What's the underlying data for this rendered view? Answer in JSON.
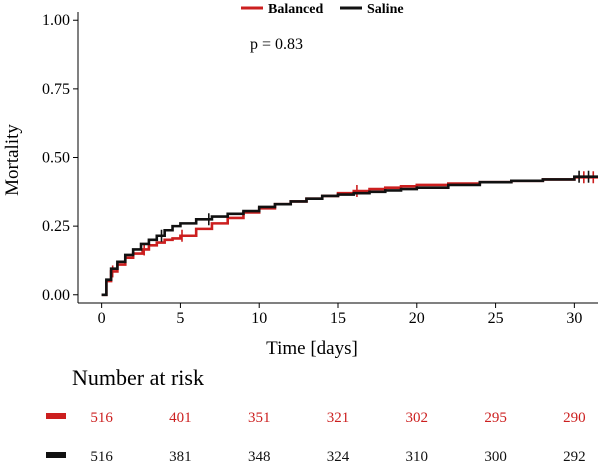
{
  "chart_data": {
    "type": "line",
    "title": "",
    "xlabel": "Time [days]",
    "ylabel": "Mortality",
    "xlim": [
      -1.5,
      31.5
    ],
    "ylim": [
      -0.03,
      1.03
    ],
    "xticks": [
      0,
      5,
      10,
      15,
      20,
      25,
      30
    ],
    "yticks": [
      "0.00",
      "0.25",
      "0.50",
      "0.75",
      "1.00"
    ],
    "grid": false,
    "legend": "top",
    "annotation": "p = 0.83",
    "series": [
      {
        "name": "Balanced",
        "color": "#cc1f1f",
        "x": [
          0,
          0.3,
          0.6,
          1,
          1.5,
          2,
          2.6,
          3,
          3.5,
          4,
          4.5,
          5,
          6,
          7,
          8,
          9,
          10,
          11,
          12,
          13,
          14,
          15,
          16,
          17,
          18,
          19,
          20,
          22,
          24,
          26,
          28,
          30,
          31.5
        ],
        "y": [
          0,
          0.05,
          0.085,
          0.11,
          0.135,
          0.15,
          0.165,
          0.18,
          0.19,
          0.2,
          0.205,
          0.215,
          0.24,
          0.26,
          0.28,
          0.3,
          0.315,
          0.33,
          0.34,
          0.35,
          0.36,
          0.37,
          0.378,
          0.385,
          0.39,
          0.395,
          0.4,
          0.405,
          0.41,
          0.415,
          0.42,
          0.428,
          0.43
        ],
        "censor_x": [
          0.7,
          2.7,
          5.1,
          16.2,
          30.6,
          31.2
        ]
      },
      {
        "name": "Saline",
        "color": "#111111",
        "x": [
          0,
          0.3,
          0.6,
          1,
          1.5,
          2,
          2.5,
          3,
          3.5,
          4,
          4.5,
          5,
          6,
          7,
          8,
          9,
          10,
          11,
          12,
          13,
          14,
          15,
          16,
          17,
          18,
          19,
          20,
          22,
          24,
          26,
          28,
          30,
          31.5
        ],
        "y": [
          0,
          0.055,
          0.095,
          0.12,
          0.145,
          0.165,
          0.185,
          0.2,
          0.215,
          0.235,
          0.25,
          0.26,
          0.275,
          0.285,
          0.295,
          0.305,
          0.32,
          0.33,
          0.34,
          0.35,
          0.36,
          0.365,
          0.37,
          0.375,
          0.38,
          0.385,
          0.39,
          0.4,
          0.41,
          0.415,
          0.42,
          0.43,
          0.435
        ],
        "censor_x": [
          3.8,
          6.8,
          30.3,
          30.9
        ]
      }
    ]
  },
  "risk_table": {
    "title": "Number at risk",
    "rows": [
      {
        "color": "#cc1f1f",
        "values": [
          "516",
          "401",
          "351",
          "321",
          "302",
          "295",
          "290"
        ]
      },
      {
        "color": "#111111",
        "values": [
          "516",
          "381",
          "348",
          "324",
          "310",
          "300",
          "292"
        ]
      }
    ]
  }
}
